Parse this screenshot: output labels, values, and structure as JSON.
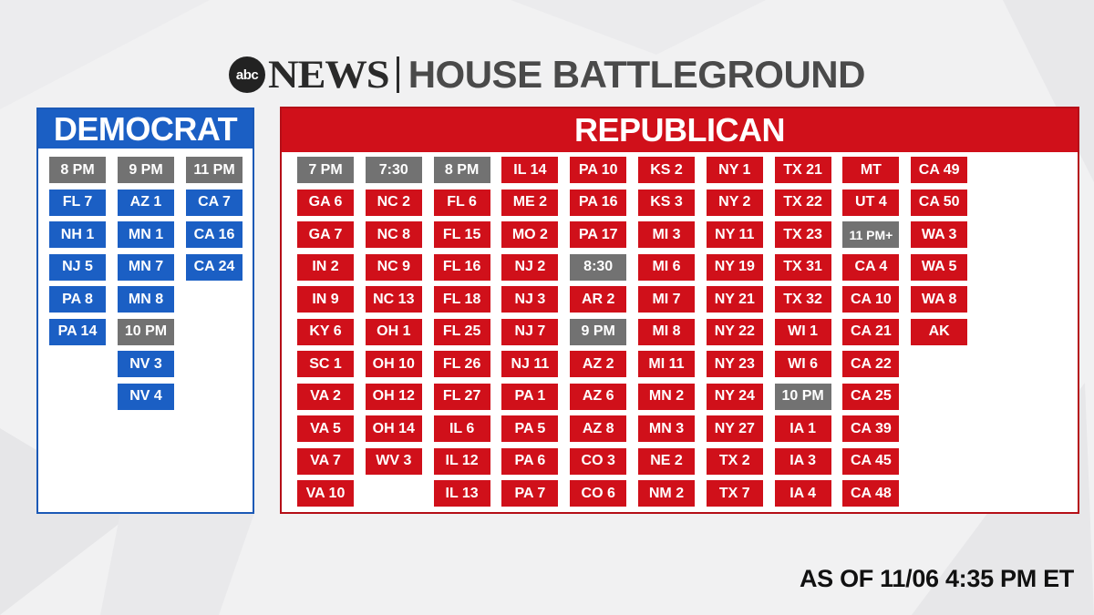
{
  "header": {
    "logo_abc": "abc",
    "logo_news": "NEWS",
    "title": "HOUSE BATTLEGROUND"
  },
  "colors": {
    "democrat": "#1b5fc4",
    "republican": "#d0101a",
    "time_marker": "#727272"
  },
  "democrat": {
    "title": "DEMOCRAT",
    "columns": [
      [
        {
          "label": "8 PM",
          "type": "time"
        },
        {
          "label": "FL 7",
          "type": "seat"
        },
        {
          "label": "NH 1",
          "type": "seat"
        },
        {
          "label": "NJ 5",
          "type": "seat"
        },
        {
          "label": "PA 8",
          "type": "seat"
        },
        {
          "label": "PA 14",
          "type": "seat"
        }
      ],
      [
        {
          "label": "9 PM",
          "type": "time"
        },
        {
          "label": "AZ 1",
          "type": "seat"
        },
        {
          "label": "MN 1",
          "type": "seat"
        },
        {
          "label": "MN 7",
          "type": "seat"
        },
        {
          "label": "MN 8",
          "type": "seat"
        },
        {
          "label": "10 PM",
          "type": "time"
        },
        {
          "label": "NV 3",
          "type": "seat"
        },
        {
          "label": "NV 4",
          "type": "seat"
        }
      ],
      [
        {
          "label": "11 PM",
          "type": "time"
        },
        {
          "label": "CA 7",
          "type": "seat"
        },
        {
          "label": "CA 16",
          "type": "seat"
        },
        {
          "label": "CA 24",
          "type": "seat"
        }
      ]
    ]
  },
  "republican": {
    "title": "REPUBLICAN",
    "columns": [
      [
        {
          "label": "7 PM",
          "type": "time"
        },
        {
          "label": "GA 6",
          "type": "seat"
        },
        {
          "label": "GA 7",
          "type": "seat"
        },
        {
          "label": "IN 2",
          "type": "seat"
        },
        {
          "label": "IN 9",
          "type": "seat"
        },
        {
          "label": "KY 6",
          "type": "seat"
        },
        {
          "label": "SC 1",
          "type": "seat"
        },
        {
          "label": "VA 2",
          "type": "seat"
        },
        {
          "label": "VA 5",
          "type": "seat"
        },
        {
          "label": "VA 7",
          "type": "seat"
        },
        {
          "label": "VA 10",
          "type": "seat"
        }
      ],
      [
        {
          "label": "7:30",
          "type": "time"
        },
        {
          "label": "NC 2",
          "type": "seat"
        },
        {
          "label": "NC 8",
          "type": "seat"
        },
        {
          "label": "NC 9",
          "type": "seat"
        },
        {
          "label": "NC 13",
          "type": "seat"
        },
        {
          "label": "OH 1",
          "type": "seat"
        },
        {
          "label": "OH 10",
          "type": "seat"
        },
        {
          "label": "OH 12",
          "type": "seat"
        },
        {
          "label": "OH 14",
          "type": "seat"
        },
        {
          "label": "WV 3",
          "type": "seat"
        }
      ],
      [
        {
          "label": "8 PM",
          "type": "time"
        },
        {
          "label": "FL 6",
          "type": "seat"
        },
        {
          "label": "FL 15",
          "type": "seat"
        },
        {
          "label": "FL 16",
          "type": "seat"
        },
        {
          "label": "FL 18",
          "type": "seat"
        },
        {
          "label": "FL 25",
          "type": "seat"
        },
        {
          "label": "FL 26",
          "type": "seat"
        },
        {
          "label": "FL 27",
          "type": "seat"
        },
        {
          "label": "IL 6",
          "type": "seat"
        },
        {
          "label": "IL 12",
          "type": "seat"
        },
        {
          "label": "IL 13",
          "type": "seat"
        }
      ],
      [
        {
          "label": "IL 14",
          "type": "seat"
        },
        {
          "label": "ME 2",
          "type": "seat"
        },
        {
          "label": "MO 2",
          "type": "seat"
        },
        {
          "label": "NJ 2",
          "type": "seat"
        },
        {
          "label": "NJ 3",
          "type": "seat"
        },
        {
          "label": "NJ 7",
          "type": "seat"
        },
        {
          "label": "NJ 11",
          "type": "seat"
        },
        {
          "label": "PA 1",
          "type": "seat"
        },
        {
          "label": "PA 5",
          "type": "seat"
        },
        {
          "label": "PA 6",
          "type": "seat"
        },
        {
          "label": "PA 7",
          "type": "seat"
        }
      ],
      [
        {
          "label": "PA 10",
          "type": "seat"
        },
        {
          "label": "PA 16",
          "type": "seat"
        },
        {
          "label": "PA 17",
          "type": "seat"
        },
        {
          "label": "8:30",
          "type": "time"
        },
        {
          "label": "AR 2",
          "type": "seat"
        },
        {
          "label": "9 PM",
          "type": "time"
        },
        {
          "label": "AZ 2",
          "type": "seat"
        },
        {
          "label": "AZ 6",
          "type": "seat"
        },
        {
          "label": "AZ 8",
          "type": "seat"
        },
        {
          "label": "CO 3",
          "type": "seat"
        },
        {
          "label": "CO 6",
          "type": "seat"
        }
      ],
      [
        {
          "label": "KS 2",
          "type": "seat"
        },
        {
          "label": "KS 3",
          "type": "seat"
        },
        {
          "label": "MI 3",
          "type": "seat"
        },
        {
          "label": "MI 6",
          "type": "seat"
        },
        {
          "label": "MI 7",
          "type": "seat"
        },
        {
          "label": "MI 8",
          "type": "seat"
        },
        {
          "label": "MI 11",
          "type": "seat"
        },
        {
          "label": "MN 2",
          "type": "seat"
        },
        {
          "label": "MN 3",
          "type": "seat"
        },
        {
          "label": "NE 2",
          "type": "seat"
        },
        {
          "label": "NM 2",
          "type": "seat"
        }
      ],
      [
        {
          "label": "NY 1",
          "type": "seat"
        },
        {
          "label": "NY 2",
          "type": "seat"
        },
        {
          "label": "NY 11",
          "type": "seat"
        },
        {
          "label": "NY 19",
          "type": "seat"
        },
        {
          "label": "NY 21",
          "type": "seat"
        },
        {
          "label": "NY 22",
          "type": "seat"
        },
        {
          "label": "NY 23",
          "type": "seat"
        },
        {
          "label": "NY 24",
          "type": "seat"
        },
        {
          "label": "NY 27",
          "type": "seat"
        },
        {
          "label": "TX 2",
          "type": "seat"
        },
        {
          "label": "TX 7",
          "type": "seat"
        }
      ],
      [
        {
          "label": "TX 21",
          "type": "seat"
        },
        {
          "label": "TX 22",
          "type": "seat"
        },
        {
          "label": "TX 23",
          "type": "seat"
        },
        {
          "label": "TX 31",
          "type": "seat"
        },
        {
          "label": "TX 32",
          "type": "seat"
        },
        {
          "label": "WI 1",
          "type": "seat"
        },
        {
          "label": "WI 6",
          "type": "seat"
        },
        {
          "label": "10 PM",
          "type": "time"
        },
        {
          "label": "IA 1",
          "type": "seat"
        },
        {
          "label": "IA 3",
          "type": "seat"
        },
        {
          "label": "IA 4",
          "type": "seat"
        }
      ],
      [
        {
          "label": "MT",
          "type": "seat"
        },
        {
          "label": "UT 4",
          "type": "seat"
        },
        {
          "label": "11 PM+",
          "type": "time"
        },
        {
          "label": "CA 4",
          "type": "seat"
        },
        {
          "label": "CA 10",
          "type": "seat"
        },
        {
          "label": "CA 21",
          "type": "seat"
        },
        {
          "label": "CA 22",
          "type": "seat"
        },
        {
          "label": "CA 25",
          "type": "seat"
        },
        {
          "label": "CA 39",
          "type": "seat"
        },
        {
          "label": "CA 45",
          "type": "seat"
        },
        {
          "label": "CA 48",
          "type": "seat"
        }
      ],
      [
        {
          "label": "CA 49",
          "type": "seat"
        },
        {
          "label": "CA 50",
          "type": "seat"
        },
        {
          "label": "WA 3",
          "type": "seat"
        },
        {
          "label": "WA 5",
          "type": "seat"
        },
        {
          "label": "WA 8",
          "type": "seat"
        },
        {
          "label": "AK",
          "type": "seat"
        }
      ]
    ]
  },
  "footer": {
    "timestamp": "AS OF 11/06 4:35 PM ET"
  }
}
